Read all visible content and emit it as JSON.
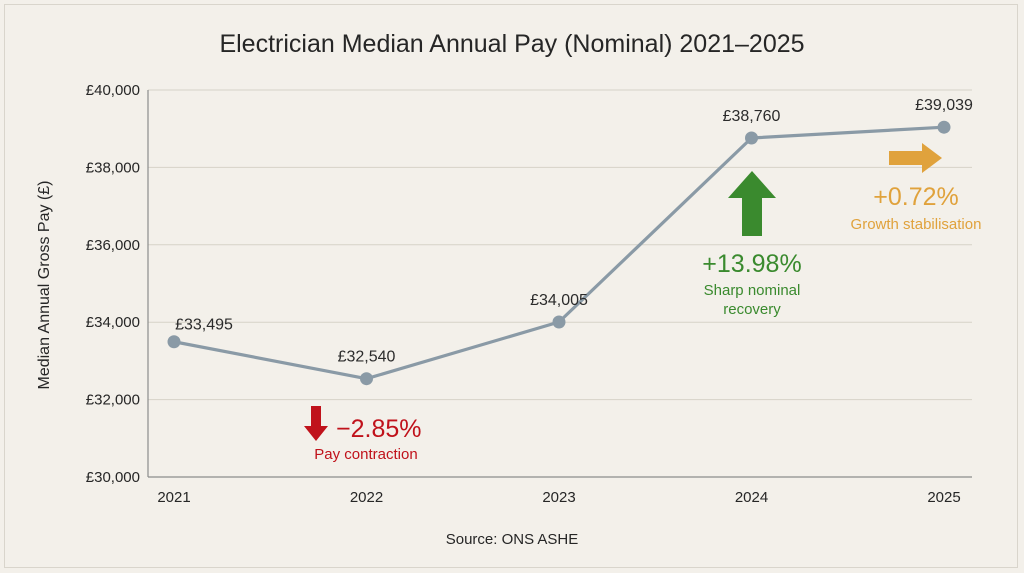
{
  "chart_data": {
    "type": "line",
    "title": "Electrician Median Annual Pay (Nominal) 2021–2025",
    "ylabel": "Median Annual Gross Pay (£)",
    "xlabel": "",
    "x": [
      "2021",
      "2022",
      "2023",
      "2024",
      "2025"
    ],
    "series": [
      {
        "values": [
          33495,
          32540,
          34005,
          38760,
          39039
        ]
      }
    ],
    "data_labels": [
      "£33,495",
      "£32,540",
      "£34,005",
      "£38,760",
      "£39,039"
    ],
    "ylim": [
      30000,
      40000
    ],
    "yticks": [
      30000,
      32000,
      34000,
      36000,
      38000,
      40000
    ],
    "ytick_labels": [
      "£30,000",
      "£32,000",
      "£34,000",
      "£36,000",
      "£38,000",
      "£40,000"
    ],
    "grid": true,
    "line_color": "#8a9aa6",
    "annotations": [
      {
        "id": "a2022",
        "direction": "down",
        "value": "−2.85%",
        "label_lines": [
          "Pay contraction"
        ],
        "color": "#c0121b"
      },
      {
        "id": "a2024",
        "direction": "up",
        "value": "+13.98%",
        "label_lines": [
          "Sharp nominal",
          "recovery"
        ],
        "color": "#3a8a2e"
      },
      {
        "id": "a2025",
        "direction": "right",
        "value": "+0.72%",
        "label_lines": [
          "Growth stabilisation"
        ],
        "color": "#e0a23c"
      }
    ],
    "source": "Source: ONS ASHE"
  }
}
